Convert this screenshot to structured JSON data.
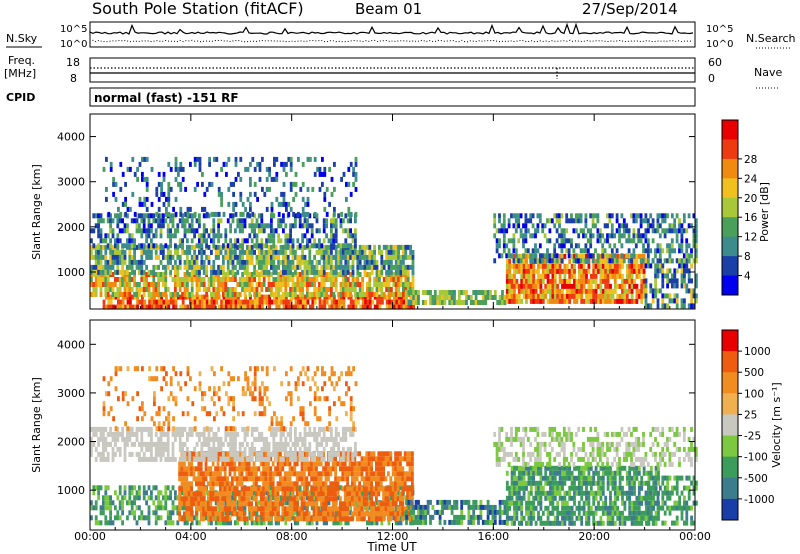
{
  "header": {
    "station": "South Pole Station (fitACF)",
    "beam": "Beam 01",
    "date": "27/Sep/2014"
  },
  "top_panels": {
    "nsky_label": "N.Sky",
    "nsearch_label": "N.Search",
    "noise_ticks": [
      "10^5",
      "10^0"
    ],
    "freq_label_1": "Freq.",
    "freq_label_2": "[MHz]",
    "freq_ticks": [
      "18",
      "8"
    ],
    "nave_ticks": [
      "60",
      "0"
    ],
    "nave_label": "Nave",
    "cpid_label": "CPID",
    "cpid_text": "normal (fast) -151 RF"
  },
  "chart_data": [
    {
      "type": "heatmap",
      "panel": "power",
      "ylabel": "Slant Range [km]",
      "ylim": [
        180,
        4500
      ],
      "y_ticks": [
        1000,
        2000,
        3000,
        4000
      ],
      "xlim": [
        0,
        24
      ],
      "x_ticks": [
        0,
        4,
        8,
        12,
        16,
        20,
        24
      ],
      "x_tick_labels": [
        "00:00",
        "04:00",
        "08:00",
        "12:00",
        "16:00",
        "20:00",
        "00:00"
      ],
      "colorbar": {
        "label": "Power [dB]",
        "tick_labels": [
          "4",
          "8",
          "12",
          "16",
          "20",
          "24",
          "28"
        ],
        "colors": [
          "#0000ee",
          "#1a3fa6",
          "#3c8c8c",
          "#4aa05a",
          "#a8c83a",
          "#f0c020",
          "#f08a10",
          "#ee3a10",
          "#e80000"
        ]
      },
      "scatter_regions": [
        {
          "t": [
            0.5,
            12.8
          ],
          "r": [
            200,
            500
          ],
          "level": [
            5,
            8
          ],
          "density": 0.85
        },
        {
          "t": [
            0.0,
            12.8
          ],
          "r": [
            500,
            1000
          ],
          "level": [
            3,
            7
          ],
          "density": 0.8
        },
        {
          "t": [
            0.0,
            12.8
          ],
          "r": [
            1000,
            1600
          ],
          "level": [
            1,
            5
          ],
          "density": 0.75
        },
        {
          "t": [
            0.0,
            10.5
          ],
          "r": [
            1600,
            2300
          ],
          "level": [
            0,
            4
          ],
          "density": 0.55
        },
        {
          "t": [
            0.5,
            10.5
          ],
          "r": [
            2300,
            3550
          ],
          "level": [
            0,
            3
          ],
          "density": 0.22
        },
        {
          "t": [
            12.5,
            16.5
          ],
          "r": [
            300,
            600
          ],
          "level": [
            2,
            5
          ],
          "density": 0.75
        },
        {
          "t": [
            16.5,
            22.0
          ],
          "r": [
            300,
            1400
          ],
          "level": [
            4,
            8
          ],
          "density": 0.85
        },
        {
          "t": [
            16.0,
            24.0
          ],
          "r": [
            1300,
            2300
          ],
          "level": [
            0,
            4
          ],
          "density": 0.5
        },
        {
          "t": [
            22.0,
            24.0
          ],
          "r": [
            300,
            1300
          ],
          "level": [
            0,
            5
          ],
          "density": 0.55
        }
      ]
    },
    {
      "type": "heatmap",
      "panel": "velocity",
      "ylabel": "Slant Range [km]",
      "ylim": [
        180,
        4500
      ],
      "y_ticks": [
        1000,
        2000,
        3000,
        4000
      ],
      "xlim": [
        0,
        24
      ],
      "x_ticks": [
        0,
        4,
        8,
        12,
        16,
        20,
        24
      ],
      "x_tick_labels": [
        "00:00",
        "04:00",
        "08:00",
        "12:00",
        "16:00",
        "20:00",
        "00:00"
      ],
      "xlabel": "Time UT",
      "colorbar": {
        "label": "Velocity [m s⁻¹]",
        "tick_labels": [
          "1000",
          "500",
          "100",
          "25",
          "-25",
          "-100",
          "-500",
          "-1000"
        ],
        "colors": [
          "#1a3ea8",
          "#3c7c8c",
          "#3c9c5c",
          "#7cc840",
          "#c8c8c0",
          "#f0b050",
          "#f08c20",
          "#ee5c10",
          "#e80000"
        ]
      },
      "scatter_regions": [
        {
          "t": [
            0.0,
            12.8
          ],
          "r": [
            300,
            1100
          ],
          "level": [
            1,
            3
          ],
          "density": 0.55
        },
        {
          "t": [
            3.5,
            12.8
          ],
          "r": [
            400,
            1800
          ],
          "level": [
            6,
            7
          ],
          "density": 0.8
        },
        {
          "t": [
            0.0,
            10.5
          ],
          "r": [
            1600,
            2300
          ],
          "level": [
            4,
            4
          ],
          "density": 0.6
        },
        {
          "t": [
            0.5,
            10.5
          ],
          "r": [
            2300,
            3550
          ],
          "level": [
            5,
            7
          ],
          "density": 0.2
        },
        {
          "t": [
            12.5,
            16.5
          ],
          "r": [
            300,
            800
          ],
          "level": [
            0,
            3
          ],
          "density": 0.65
        },
        {
          "t": [
            16.5,
            22.5
          ],
          "r": [
            300,
            1500
          ],
          "level": [
            1,
            3
          ],
          "density": 0.75
        },
        {
          "t": [
            16.0,
            24.0
          ],
          "r": [
            1500,
            2300
          ],
          "level": [
            3,
            4
          ],
          "density": 0.45
        },
        {
          "t": [
            22.0,
            24.0
          ],
          "r": [
            300,
            1300
          ],
          "level": [
            1,
            3
          ],
          "density": 0.5
        }
      ]
    }
  ]
}
